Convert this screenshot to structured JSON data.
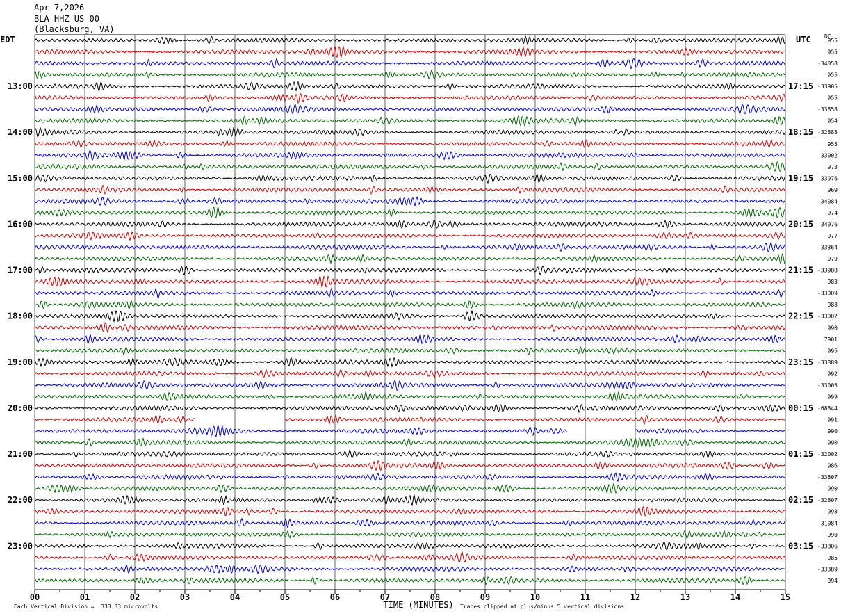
{
  "header": {
    "date": "Apr 7,2026",
    "station": "BLA HHZ US 00",
    "location": "(Blacksburg, VA)"
  },
  "left_tz": "EDT",
  "right_tz": "UTC",
  "dc_label": "DC",
  "footer": {
    "scale": "Each Vertical Division =  333.33 microvolts",
    "clip": "Traces clipped at plus/minus 5 vertical divisions"
  },
  "colors": {
    "cycle": [
      "#000000",
      "#cc0000",
      "#0000cc",
      "#006600"
    ],
    "grid": "#000000"
  },
  "chart_data": {
    "type": "line",
    "title": "",
    "xlabel": "TIME (MINUTES)",
    "x_ticks": [
      "00",
      "01",
      "02",
      "03",
      "04",
      "05",
      "06",
      "07",
      "08",
      "09",
      "10",
      "11",
      "12",
      "13",
      "14",
      "15"
    ],
    "xlim": [
      0,
      15
    ],
    "trace_count": 48,
    "trace_minutes": 15,
    "left_hour_labels": [
      {
        "trace": 4,
        "label": "13:00"
      },
      {
        "trace": 8,
        "label": "14:00"
      },
      {
        "trace": 12,
        "label": "15:00"
      },
      {
        "trace": 16,
        "label": "16:00"
      },
      {
        "trace": 20,
        "label": "17:00"
      },
      {
        "trace": 24,
        "label": "18:00"
      },
      {
        "trace": 28,
        "label": "19:00"
      },
      {
        "trace": 32,
        "label": "20:00"
      },
      {
        "trace": 36,
        "label": "21:00"
      },
      {
        "trace": 40,
        "label": "22:00"
      },
      {
        "trace": 44,
        "label": "23:00"
      }
    ],
    "right_hour_labels": [
      {
        "trace": 4,
        "label": "17:15"
      },
      {
        "trace": 8,
        "label": "18:15"
      },
      {
        "trace": 12,
        "label": "19:15"
      },
      {
        "trace": 16,
        "label": "20:15"
      },
      {
        "trace": 20,
        "label": "21:15"
      },
      {
        "trace": 24,
        "label": "22:15"
      },
      {
        "trace": 28,
        "label": "23:15"
      },
      {
        "trace": 32,
        "label": "00:15"
      },
      {
        "trace": 36,
        "label": "01:15"
      },
      {
        "trace": 40,
        "label": "02:15"
      },
      {
        "trace": 44,
        "label": "03:15"
      }
    ],
    "dc_offsets": [
      "955",
      "955",
      "-34058",
      "955",
      "-33905",
      "955",
      "-33858",
      "954",
      "-32883",
      "955",
      "-33002",
      "973",
      "-33976",
      "969",
      "-34084",
      "974",
      "-34076",
      "977",
      "-33364",
      "979",
      "-33988",
      "983",
      "-33009",
      "988",
      "-33002",
      "990",
      "7901",
      "995",
      "-33889",
      "992",
      "-33005",
      "999",
      "-68844",
      "991",
      "990",
      "990",
      "-32002",
      "986",
      "-33807",
      "990",
      "-32807",
      "993",
      "-31084",
      "990",
      "-33806",
      "985",
      "-33389",
      "994"
    ],
    "gaps": [
      {
        "trace": 33,
        "from_minute": 3.2,
        "to_minute": 5.0
      },
      {
        "trace": 34,
        "from_minute": 10.65,
        "to_minute": 12.0
      }
    ]
  }
}
